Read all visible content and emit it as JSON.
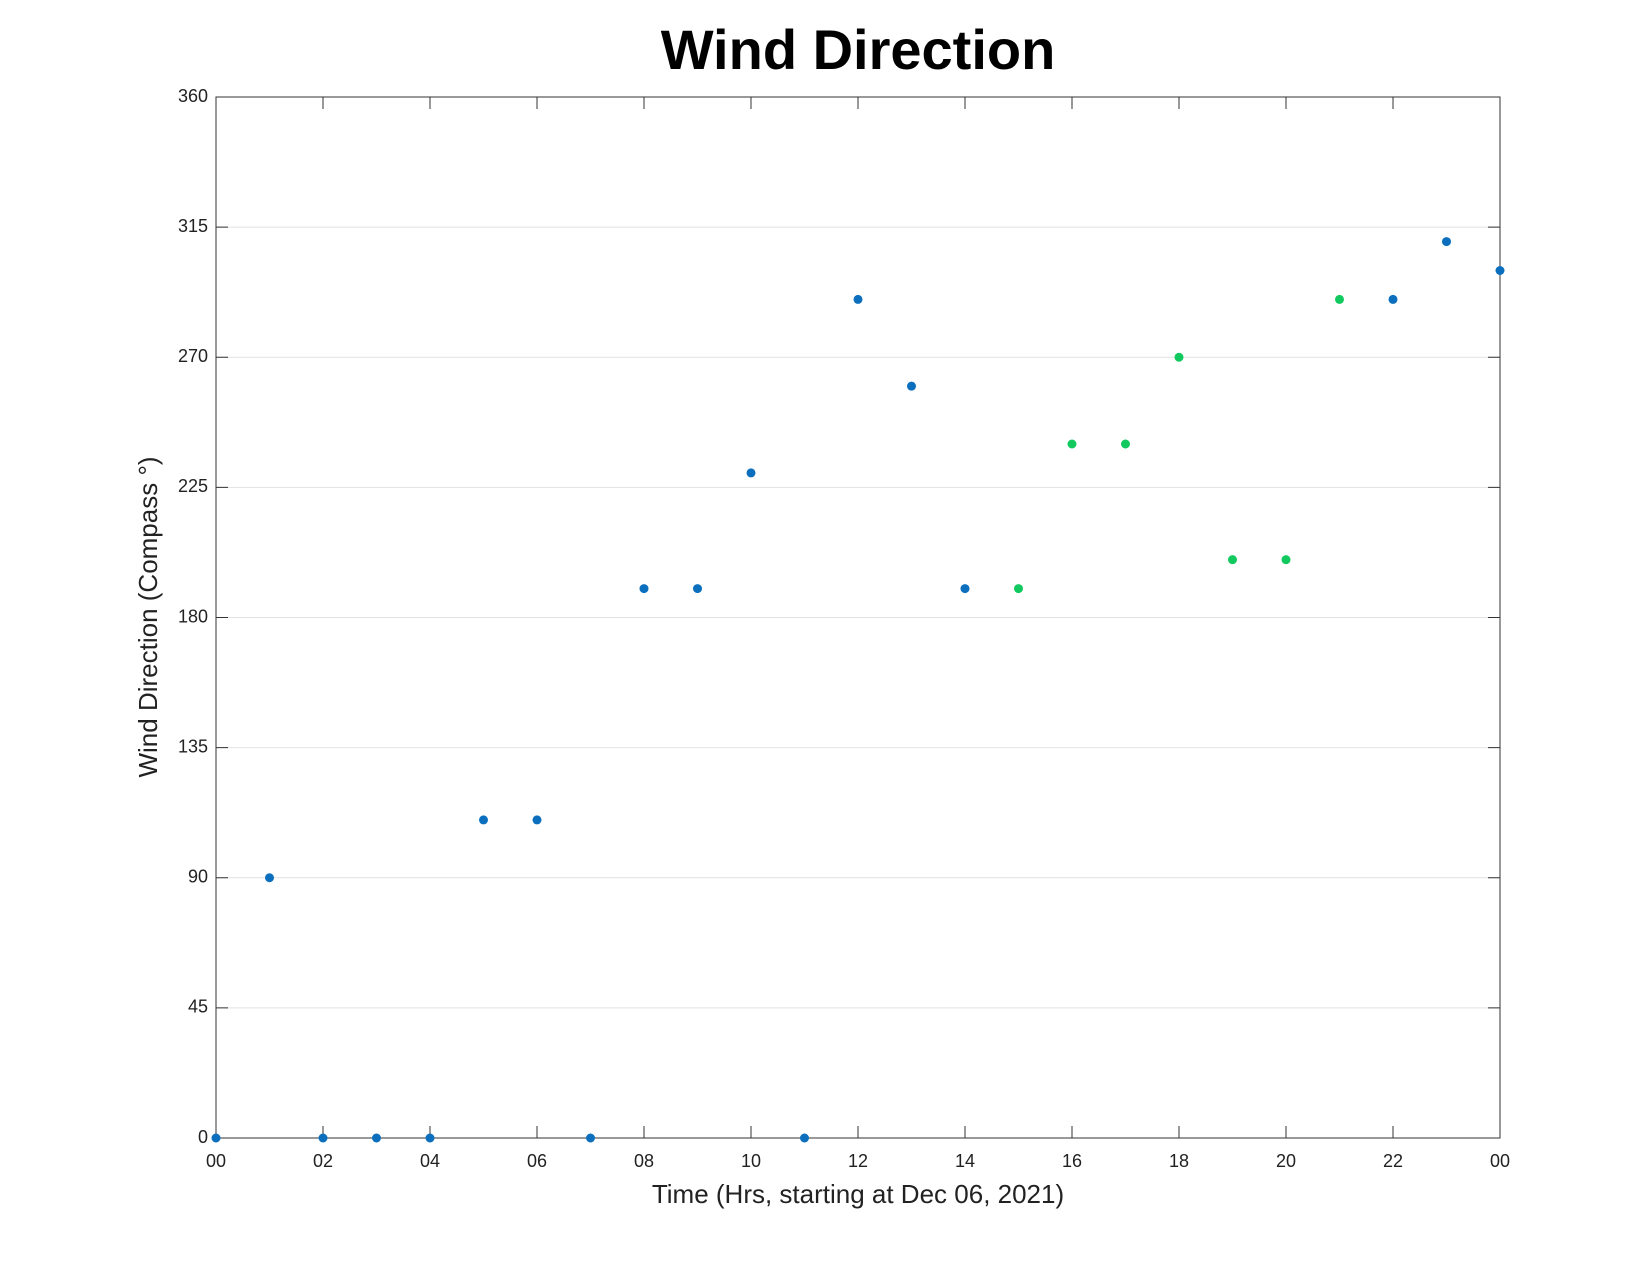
{
  "chart_data": {
    "type": "scatter",
    "title": "Wind Direction",
    "x_label": "Time (Hrs, starting at Dec 06, 2021)",
    "y_label": "Wind Direction (Compass °)",
    "x": [
      0,
      1,
      2,
      3,
      4,
      5,
      6,
      7,
      8,
      9,
      10,
      11,
      12,
      13,
      14,
      15,
      16,
      17,
      18,
      19,
      20,
      21,
      22,
      23,
      24
    ],
    "values": [
      0,
      90,
      0,
      0,
      0,
      110,
      110,
      0,
      190,
      190,
      230,
      0,
      290,
      260,
      190,
      190,
      240,
      240,
      270,
      200,
      200,
      290,
      290,
      310,
      300
    ],
    "point_colors": [
      "#0b6fbd",
      "#0b6fbd",
      "#0b6fbd",
      "#0b6fbd",
      "#0b6fbd",
      "#0b6fbd",
      "#0b6fbd",
      "#0b6fbd",
      "#0b6fbd",
      "#0b6fbd",
      "#0b6fbd",
      "#0b6fbd",
      "#0b6fbd",
      "#0b6fbd",
      "#0b6fbd",
      "#12c95f",
      "#12c95f",
      "#12c95f",
      "#12c95f",
      "#12c95f",
      "#12c95f",
      "#12c95f",
      "#0b6fbd",
      "#0b6fbd",
      "#0b6fbd"
    ],
    "xlim": [
      0,
      24
    ],
    "xticks": [
      {
        "value": 0,
        "label": "00"
      },
      {
        "value": 2,
        "label": "02"
      },
      {
        "value": 4,
        "label": "04"
      },
      {
        "value": 6,
        "label": "06"
      },
      {
        "value": 8,
        "label": "08"
      },
      10,
      12,
      14,
      16,
      18,
      20,
      22,
      {
        "value": 24,
        "label": "00"
      }
    ],
    "ylim": [
      0,
      360
    ],
    "yticks": [
      0,
      45,
      90,
      135,
      180,
      225,
      270,
      315,
      360
    ],
    "grid": true
  }
}
